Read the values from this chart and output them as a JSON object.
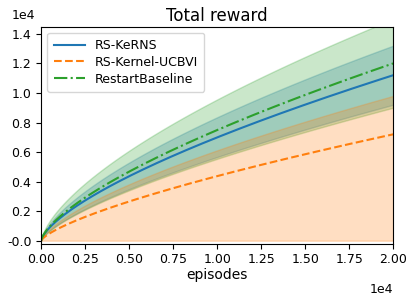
{
  "title": "Total reward",
  "xlabel": "episodes",
  "xlim": [
    0,
    20000
  ],
  "ylim": [
    -200,
    14500
  ],
  "yticks": [
    0,
    2000,
    4000,
    6000,
    8000,
    10000,
    12000,
    14000
  ],
  "ytick_labels": [
    "-0.0",
    "0.2",
    "0.4",
    "0.6",
    "0.8",
    "1.0",
    "1.2",
    "1.4"
  ],
  "xticks": [
    0,
    2500,
    5000,
    7500,
    10000,
    12500,
    15000,
    17500,
    20000
  ],
  "lines": [
    {
      "label": "RS-KeRNS",
      "color": "#1f77b4",
      "linestyle": "-",
      "linewidth": 1.5,
      "mean_coeff": 11200,
      "mean_power": 0.68,
      "lower_coeff": 9200,
      "lower_power": 0.7,
      "upper_coeff": 13200,
      "upper_power": 0.66,
      "fill_alpha": 0.25
    },
    {
      "label": "RS-Kernel-UCBVI",
      "color": "#ff7f0e",
      "linestyle": "--",
      "linewidth": 1.5,
      "mean_coeff": 7200,
      "mean_power": 0.72,
      "lower_coeff": 0,
      "lower_power": 1.0,
      "upper_coeff": 9800,
      "upper_power": 0.68,
      "fill_alpha": 0.25
    },
    {
      "label": "RestartBaseline",
      "color": "#2ca02c",
      "linestyle": "-.",
      "linewidth": 1.5,
      "mean_coeff": 12000,
      "mean_power": 0.68,
      "lower_coeff": 9000,
      "lower_power": 0.7,
      "upper_coeff": 15000,
      "upper_power": 0.65,
      "fill_alpha": 0.25
    }
  ],
  "legend_loc": "upper left",
  "legend_fontsize": 9,
  "title_fontsize": 12,
  "tick_fontsize": 9
}
